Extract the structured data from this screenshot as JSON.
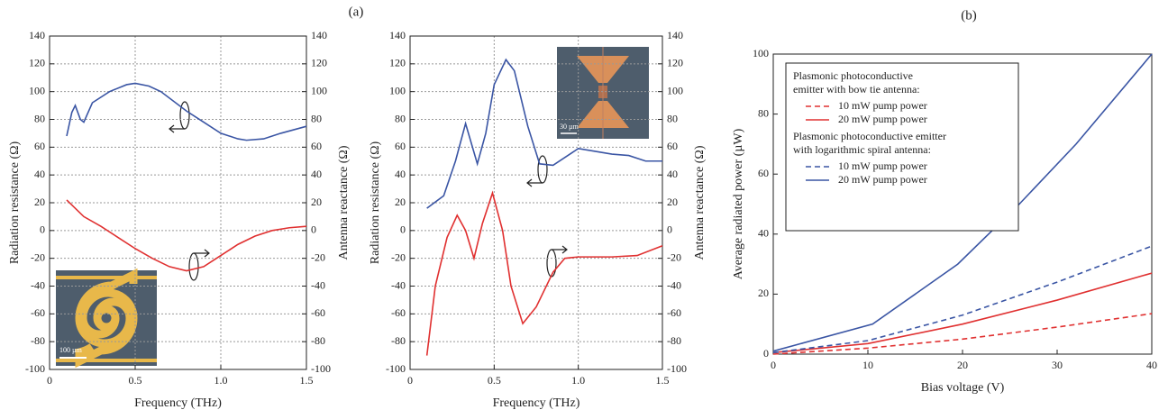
{
  "panel_labels": [
    "(a)",
    "(b)"
  ],
  "chart_data": [
    {
      "type": "line",
      "xlabel": "Frequency (THz)",
      "ylabel": "Radiation resistance (Ω)",
      "y2label": "Antenna reactance (Ω)",
      "xlim": [
        0,
        1.5
      ],
      "xticks": [
        0,
        0.5,
        {
          "value": 1.0,
          "label": "1.0"
        },
        1.5
      ],
      "ylim": [
        -100,
        140
      ],
      "yticks": [
        -100,
        -80,
        -60,
        -40,
        -20,
        0,
        20,
        40,
        60,
        80,
        100,
        120,
        140
      ],
      "y2lim": [
        -100,
        140
      ],
      "y2ticks": [
        -100,
        -80,
        -60,
        -40,
        -20,
        0,
        20,
        40,
        60,
        80,
        100,
        120,
        140
      ],
      "grid": true,
      "inset_label": "100 µm",
      "series": [
        {
          "color": "#3a55a4",
          "x": [
            0.1,
            0.13,
            0.15,
            0.18,
            0.2,
            0.25,
            0.35,
            0.45,
            0.5,
            0.58,
            0.65,
            0.8,
            0.9,
            1.0,
            1.1,
            1.15,
            1.25,
            1.35,
            1.5
          ],
          "values": [
            68,
            85,
            90,
            80,
            78,
            92,
            100,
            105,
            106,
            104,
            100,
            86,
            78,
            70,
            66,
            65,
            66,
            70,
            75
          ]
        },
        {
          "color": "#e03030",
          "axis": "y2",
          "x": [
            0.1,
            0.2,
            0.3,
            0.4,
            0.5,
            0.6,
            0.7,
            0.8,
            0.9,
            1.0,
            1.1,
            1.2,
            1.3,
            1.4,
            1.5
          ],
          "values": [
            22,
            10,
            3,
            -5,
            -13,
            -20,
            -26,
            -29,
            -26,
            -18,
            -10,
            -4,
            0,
            2,
            3
          ]
        }
      ]
    },
    {
      "type": "line",
      "xlabel": "Frequency (THz)",
      "ylabel": "Radiation resistance (Ω)",
      "y2label": "Antenna reactance (Ω)",
      "xlim": [
        0,
        1.5
      ],
      "xticks": [
        0,
        0.5,
        {
          "value": 1.0,
          "label": "1.0"
        },
        1.5
      ],
      "ylim": [
        -100,
        140
      ],
      "yticks": [
        -100,
        -80,
        -60,
        -40,
        -20,
        0,
        20,
        40,
        60,
        80,
        100,
        120,
        140
      ],
      "y2lim": [
        -100,
        140
      ],
      "y2ticks": [
        -100,
        -80,
        -60,
        -40,
        -20,
        0,
        20,
        40,
        60,
        80,
        100,
        120,
        140
      ],
      "grid": true,
      "inset_label": "30 µm",
      "series": [
        {
          "color": "#3a55a4",
          "x": [
            0.1,
            0.2,
            0.27,
            0.33,
            0.4,
            0.45,
            0.5,
            0.57,
            0.62,
            0.7,
            0.77,
            0.85,
            0.95,
            1.0,
            1.1,
            1.2,
            1.3,
            1.4,
            1.5
          ],
          "values": [
            16,
            25,
            50,
            77,
            48,
            70,
            105,
            123,
            115,
            75,
            48,
            47,
            55,
            59,
            57,
            55,
            54,
            50,
            50
          ]
        },
        {
          "color": "#e03030",
          "axis": "y2",
          "x": [
            0.1,
            0.15,
            0.22,
            0.28,
            0.33,
            0.38,
            0.43,
            0.49,
            0.55,
            0.6,
            0.67,
            0.75,
            0.85,
            0.92,
            1.0,
            1.2,
            1.35,
            1.5
          ],
          "values": [
            -90,
            -40,
            -5,
            11,
            0,
            -20,
            5,
            27,
            0,
            -40,
            -67,
            -55,
            -30,
            -20,
            -19,
            -19,
            -18,
            -11
          ]
        }
      ]
    },
    {
      "type": "line",
      "xlabel": "Bias voltage (V)",
      "ylabel": "Average radiated power (µW)",
      "xlim": [
        0,
        40
      ],
      "xticks": [
        0,
        10,
        20,
        30,
        40
      ],
      "ylim": [
        0,
        100
      ],
      "yticks": [
        0,
        20,
        40,
        60,
        80,
        100
      ],
      "grid": false,
      "legend": "upper left",
      "groups": [
        {
          "title": [
            "Plasmonic photoconductive",
            "emitter with bow tie antenna:"
          ],
          "series": [
            {
              "name": "10 mW pump power",
              "color": "#e03030",
              "dashed": true,
              "x": [
                0,
                10,
                20,
                30,
                40
              ],
              "values": [
                0,
                2,
                5,
                9,
                13.5
              ]
            },
            {
              "name": "20 mW pump power",
              "color": "#e03030",
              "dashed": false,
              "x": [
                0,
                10,
                20,
                30,
                40
              ],
              "values": [
                0.5,
                3.5,
                10,
                18,
                27
              ]
            }
          ]
        },
        {
          "title": [
            "Plasmonic photoconductive emitter",
            "with logarithmic spiral antenna:"
          ],
          "series": [
            {
              "name": "10 mW pump power",
              "color": "#3a55a4",
              "dashed": true,
              "x": [
                0,
                10,
                20,
                30,
                40
              ],
              "values": [
                0.5,
                4.5,
                13,
                24,
                36
              ]
            },
            {
              "name": "20 mW pump power",
              "color": "#3a55a4",
              "dashed": false,
              "x": [
                0,
                10.5,
                19.5,
                26,
                32,
                40
              ],
              "values": [
                1,
                10,
                30,
                50,
                70,
                100
              ]
            }
          ]
        }
      ]
    }
  ]
}
